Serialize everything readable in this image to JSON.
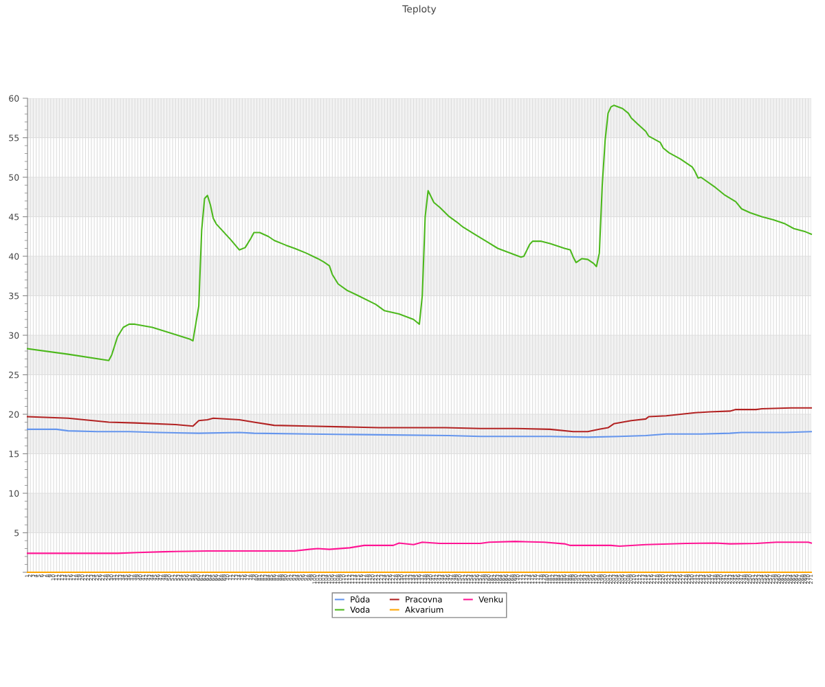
{
  "chart_data": {
    "type": "line",
    "title": "Teploty",
    "xlim": [
      1,
      271
    ],
    "ylim": [
      0,
      60
    ],
    "yticks": [
      {
        "value": 0,
        "label": null
      },
      5,
      10,
      15,
      20,
      25,
      30,
      35,
      40,
      45,
      50,
      55,
      60
    ],
    "xticks": [
      1,
      2,
      3,
      4,
      5,
      6,
      7,
      8,
      9,
      10,
      11,
      12,
      13,
      14,
      15,
      16,
      17,
      18,
      19,
      20,
      21,
      22,
      23,
      24,
      25,
      26,
      27,
      28,
      29,
      30,
      31,
      32,
      33,
      34,
      35,
      36,
      37,
      38,
      39,
      40,
      41,
      42,
      43,
      44,
      45,
      46,
      47,
      48,
      49,
      50,
      51,
      52,
      53,
      54,
      55,
      56,
      57,
      58,
      59,
      60,
      61,
      62,
      63,
      64,
      65,
      66,
      67,
      68,
      69,
      70,
      71,
      72,
      73,
      74,
      75,
      76,
      77,
      78,
      79,
      80,
      81,
      82,
      83,
      84,
      85,
      86,
      87,
      88,
      89,
      90,
      91,
      92,
      93,
      94,
      95,
      96,
      97,
      98,
      99,
      100,
      101,
      102,
      103,
      104,
      105,
      106,
      107,
      108,
      109,
      110,
      111,
      112,
      113,
      114,
      115,
      116,
      117,
      118,
      119,
      120,
      121,
      122,
      123,
      124,
      125,
      126,
      127,
      128,
      129,
      130,
      131,
      132,
      133,
      134,
      135,
      136,
      137,
      138,
      139,
      140,
      141,
      142,
      143,
      144,
      145,
      146,
      147,
      148,
      149,
      150,
      151,
      152,
      153,
      154,
      155,
      156,
      157,
      158,
      159,
      160,
      161,
      162,
      163,
      164,
      165,
      166,
      167,
      168,
      169,
      170,
      171,
      172,
      173,
      174,
      175,
      176,
      177,
      178,
      179,
      180,
      181,
      182,
      183,
      184,
      185,
      186,
      187,
      188,
      189,
      190,
      191,
      192,
      193,
      194,
      195,
      196,
      197,
      198,
      199,
      200,
      201,
      202,
      203,
      204,
      205,
      206,
      207,
      208,
      209,
      210,
      211,
      212,
      213,
      214,
      215,
      216,
      217,
      218,
      219,
      220,
      221,
      222,
      223,
      224,
      225,
      226,
      227,
      228,
      229,
      230,
      231,
      232,
      233,
      234,
      235,
      236,
      237,
      238,
      239,
      240,
      241,
      242,
      243,
      244,
      245,
      246,
      247,
      248,
      249,
      250,
      251,
      252,
      253,
      254,
      255,
      256,
      257,
      258,
      259,
      260,
      261,
      262,
      263,
      264,
      265,
      266,
      267,
      268,
      269,
      270,
      271
    ],
    "grid": true,
    "legend": "bottom",
    "marker": "none",
    "line_style": "solid",
    "bands": [
      {
        "axis": "y",
        "from": 5,
        "to": 10,
        "color": "#f2f2f2"
      },
      {
        "axis": "y",
        "from": 15,
        "to": 20,
        "color": "#f2f2f2"
      },
      {
        "axis": "y",
        "from": 25,
        "to": 30,
        "color": "#f2f2f2"
      },
      {
        "axis": "y",
        "from": 35,
        "to": 40,
        "color": "#f2f2f2"
      },
      {
        "axis": "y",
        "from": 45,
        "to": 50,
        "color": "#f2f2f2"
      },
      {
        "axis": "y",
        "from": 55,
        "to": 60,
        "color": "#f2f2f2"
      }
    ],
    "series": [
      {
        "name": "Půda",
        "color": "#6495ed",
        "x": [
          1,
          11,
          15,
          25,
          36,
          46,
          60,
          74,
          79,
          98,
          122,
          146,
          157,
          181,
          194,
          205,
          214,
          221,
          233,
          243,
          247,
          262,
          271
        ],
        "values": [
          18.1,
          18.1,
          17.9,
          17.8,
          17.8,
          17.7,
          17.6,
          17.7,
          17.6,
          17.5,
          17.4,
          17.3,
          17.2,
          17.2,
          17.1,
          17.2,
          17.3,
          17.5,
          17.5,
          17.6,
          17.7,
          17.7,
          17.8
        ]
      },
      {
        "name": "Voda",
        "color": "#4cb81c",
        "x": [
          1,
          15,
          29,
          30,
          32,
          34,
          36,
          38,
          44,
          51,
          57,
          58,
          60,
          61,
          62,
          63,
          64,
          65,
          66,
          71,
          74,
          76,
          78,
          79,
          81,
          84,
          86,
          90,
          93,
          97,
          101,
          103,
          105,
          106,
          108,
          111,
          115,
          121,
          124,
          129,
          134,
          135,
          136,
          137,
          138,
          139,
          141,
          143,
          146,
          149,
          151,
          155,
          159,
          163,
          168,
          171,
          172,
          174,
          175,
          178,
          181,
          186,
          188,
          189,
          190,
          192,
          194,
          196,
          197,
          198,
          199,
          200,
          201,
          202,
          203,
          206,
          208,
          209,
          211,
          214,
          215,
          219,
          220,
          222,
          226,
          230,
          231,
          232,
          233,
          238,
          241,
          245,
          247,
          250,
          254,
          258,
          262,
          265,
          269,
          271
        ],
        "values": [
          28.3,
          27.6,
          26.8,
          27.5,
          29.8,
          31.0,
          31.4,
          31.4,
          31.0,
          30.2,
          29.5,
          29.3,
          33.7,
          43.3,
          47.3,
          47.7,
          46.5,
          44.8,
          44.1,
          42.1,
          40.8,
          41.1,
          42.3,
          43.0,
          43.0,
          42.5,
          42.0,
          41.4,
          41.0,
          40.4,
          39.7,
          39.3,
          38.8,
          37.7,
          36.5,
          35.7,
          35.0,
          33.9,
          33.1,
          32.7,
          32.0,
          31.7,
          31.4,
          35.0,
          45.0,
          48.3,
          46.8,
          46.2,
          45.1,
          44.3,
          43.7,
          42.8,
          41.9,
          41.0,
          40.3,
          39.9,
          40.0,
          41.5,
          41.9,
          41.9,
          41.6,
          41.0,
          40.8,
          39.9,
          39.2,
          39.7,
          39.6,
          39.1,
          38.7,
          40.4,
          49.0,
          54.7,
          58.1,
          58.9,
          59.1,
          58.7,
          58.1,
          57.5,
          56.8,
          55.8,
          55.2,
          54.4,
          53.7,
          53.1,
          52.3,
          51.3,
          50.7,
          49.9,
          50.0,
          48.7,
          47.8,
          46.9,
          46.0,
          45.5,
          45.0,
          44.6,
          44.1,
          43.5,
          43.1,
          42.8
        ]
      },
      {
        "name": "Pracovna",
        "color": "#b22222",
        "x": [
          1,
          15,
          29,
          38,
          52,
          58,
          60,
          63,
          65,
          74,
          79,
          86,
          98,
          110,
          122,
          145,
          157,
          169,
          181,
          189,
          194,
          198,
          201,
          203,
          206,
          209,
          214,
          215,
          221,
          226,
          231,
          236,
          243,
          245,
          252,
          254,
          264,
          271
        ],
        "values": [
          19.7,
          19.5,
          19.0,
          18.9,
          18.7,
          18.5,
          19.2,
          19.3,
          19.5,
          19.3,
          19.0,
          18.6,
          18.5,
          18.4,
          18.3,
          18.3,
          18.2,
          18.2,
          18.1,
          17.8,
          17.8,
          18.1,
          18.3,
          18.8,
          19.0,
          19.2,
          19.4,
          19.7,
          19.8,
          20.0,
          20.2,
          20.3,
          20.4,
          20.6,
          20.6,
          20.7,
          20.8,
          20.8
        ]
      },
      {
        "name": "Akvarium",
        "color": "#ffa500",
        "x": [
          1,
          271
        ],
        "values": [
          0,
          0
        ]
      },
      {
        "name": "Venku",
        "color": "#ff1493",
        "x": [
          1,
          20,
          32,
          39,
          48,
          63,
          93,
          98,
          101,
          105,
          112,
          117,
          127,
          129,
          134,
          137,
          143,
          157,
          160,
          169,
          179,
          186,
          188,
          202,
          205,
          214,
          228,
          238,
          243,
          252,
          259,
          270,
          271
        ],
        "values": [
          2.4,
          2.4,
          2.4,
          2.5,
          2.6,
          2.7,
          2.7,
          2.9,
          3.0,
          2.9,
          3.1,
          3.4,
          3.4,
          3.7,
          3.5,
          3.8,
          3.65,
          3.65,
          3.8,
          3.9,
          3.8,
          3.6,
          3.4,
          3.4,
          3.3,
          3.5,
          3.65,
          3.7,
          3.6,
          3.65,
          3.8,
          3.8,
          3.7
        ]
      }
    ]
  }
}
